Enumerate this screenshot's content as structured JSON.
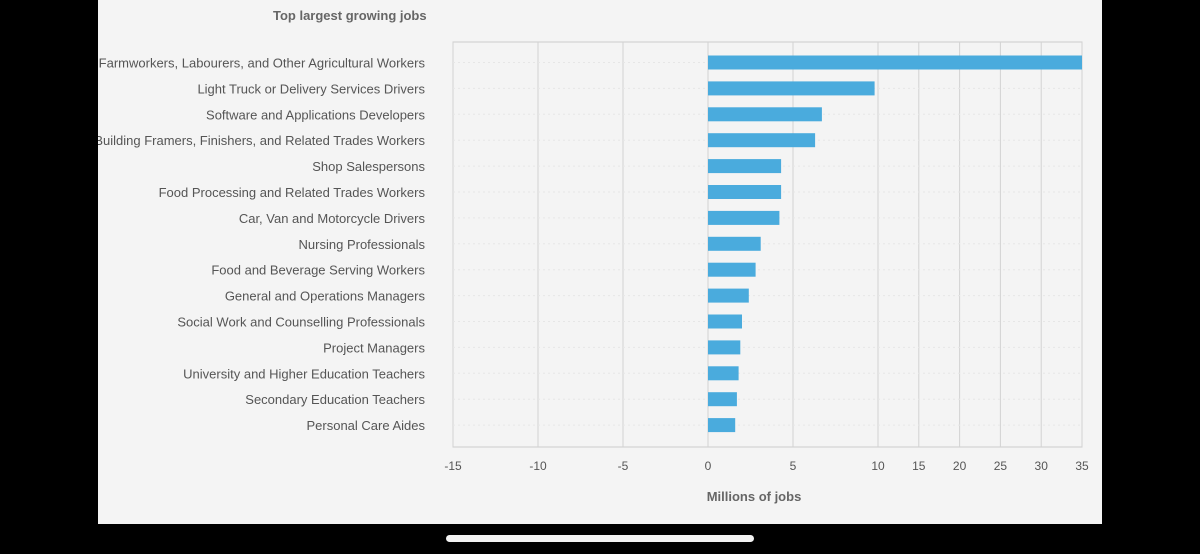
{
  "chart_data": {
    "type": "bar",
    "orientation": "horizontal",
    "title": "Top largest growing jobs",
    "xlabel": "Millions of jobs",
    "ylabel": "",
    "bar_color": "#4aabdd",
    "grid": true,
    "xticks": [
      "-15",
      "-10",
      "-5",
      "0",
      "5",
      "10",
      "15",
      "20",
      "25",
      "30",
      "35"
    ],
    "categories": [
      "Farmworkers, Labourers, and Other Agricultural Workers",
      "Light Truck or Delivery Services Drivers",
      "Software and Applications Developers",
      "Building Framers, Finishers, and Related Trades Workers",
      "Shop Salespersons",
      "Food Processing and Related Trades Workers",
      "Car, Van and Motorcycle Drivers",
      "Nursing Professionals",
      "Food and Beverage Serving Workers",
      "General and Operations Managers",
      "Social Work and Counselling Professionals",
      "Project Managers",
      "University and Higher Education Teachers",
      "Secondary Education Teachers",
      "Personal Care Aides"
    ],
    "values": [
      35,
      9.8,
      6.7,
      6.3,
      4.3,
      4.3,
      4.2,
      3.1,
      2.8,
      2.4,
      2.0,
      1.9,
      1.8,
      1.7,
      1.6
    ]
  }
}
